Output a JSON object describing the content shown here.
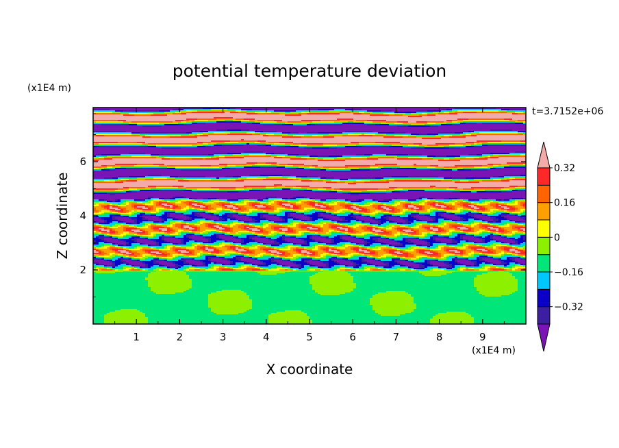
{
  "chart_data": {
    "type": "heatmap",
    "title": "potential temperature deviation",
    "xlabel": "X coordinate",
    "ylabel": "Z coordinate",
    "x_unit": "(x1E4 m)",
    "z_unit": "(x1E4 m)",
    "time_label": "t=3.7152e+06",
    "xlim": [
      0,
      10
    ],
    "ylim": [
      0,
      8
    ],
    "x_ticks": [
      "1",
      "2",
      "3",
      "4",
      "5",
      "6",
      "7",
      "8",
      "9"
    ],
    "y_ticks": [
      "2",
      "4",
      "6"
    ],
    "colorbar_labels": [
      "0.32",
      "0.16",
      "0",
      "−0.16",
      "−0.32"
    ],
    "colorbar_levels": [
      -0.4,
      -0.32,
      -0.24,
      -0.16,
      -0.08,
      0,
      0.08,
      0.16,
      0.24,
      0.32,
      0.4
    ],
    "colorbar_colors": [
      "#7a14b4",
      "#3c1ea0",
      "#0a00c8",
      "#00c8ff",
      "#00e678",
      "#8cf000",
      "#ffff00",
      "#ffa000",
      "#ff6400",
      "#ff2828",
      "#f5aaaa"
    ],
    "colors": {
      "below_min": "#7a14b4",
      "above_max": "#f5aaaa",
      "lower_layer": "#00e678",
      "lower_layer_alt": "#8cf000"
    }
  }
}
